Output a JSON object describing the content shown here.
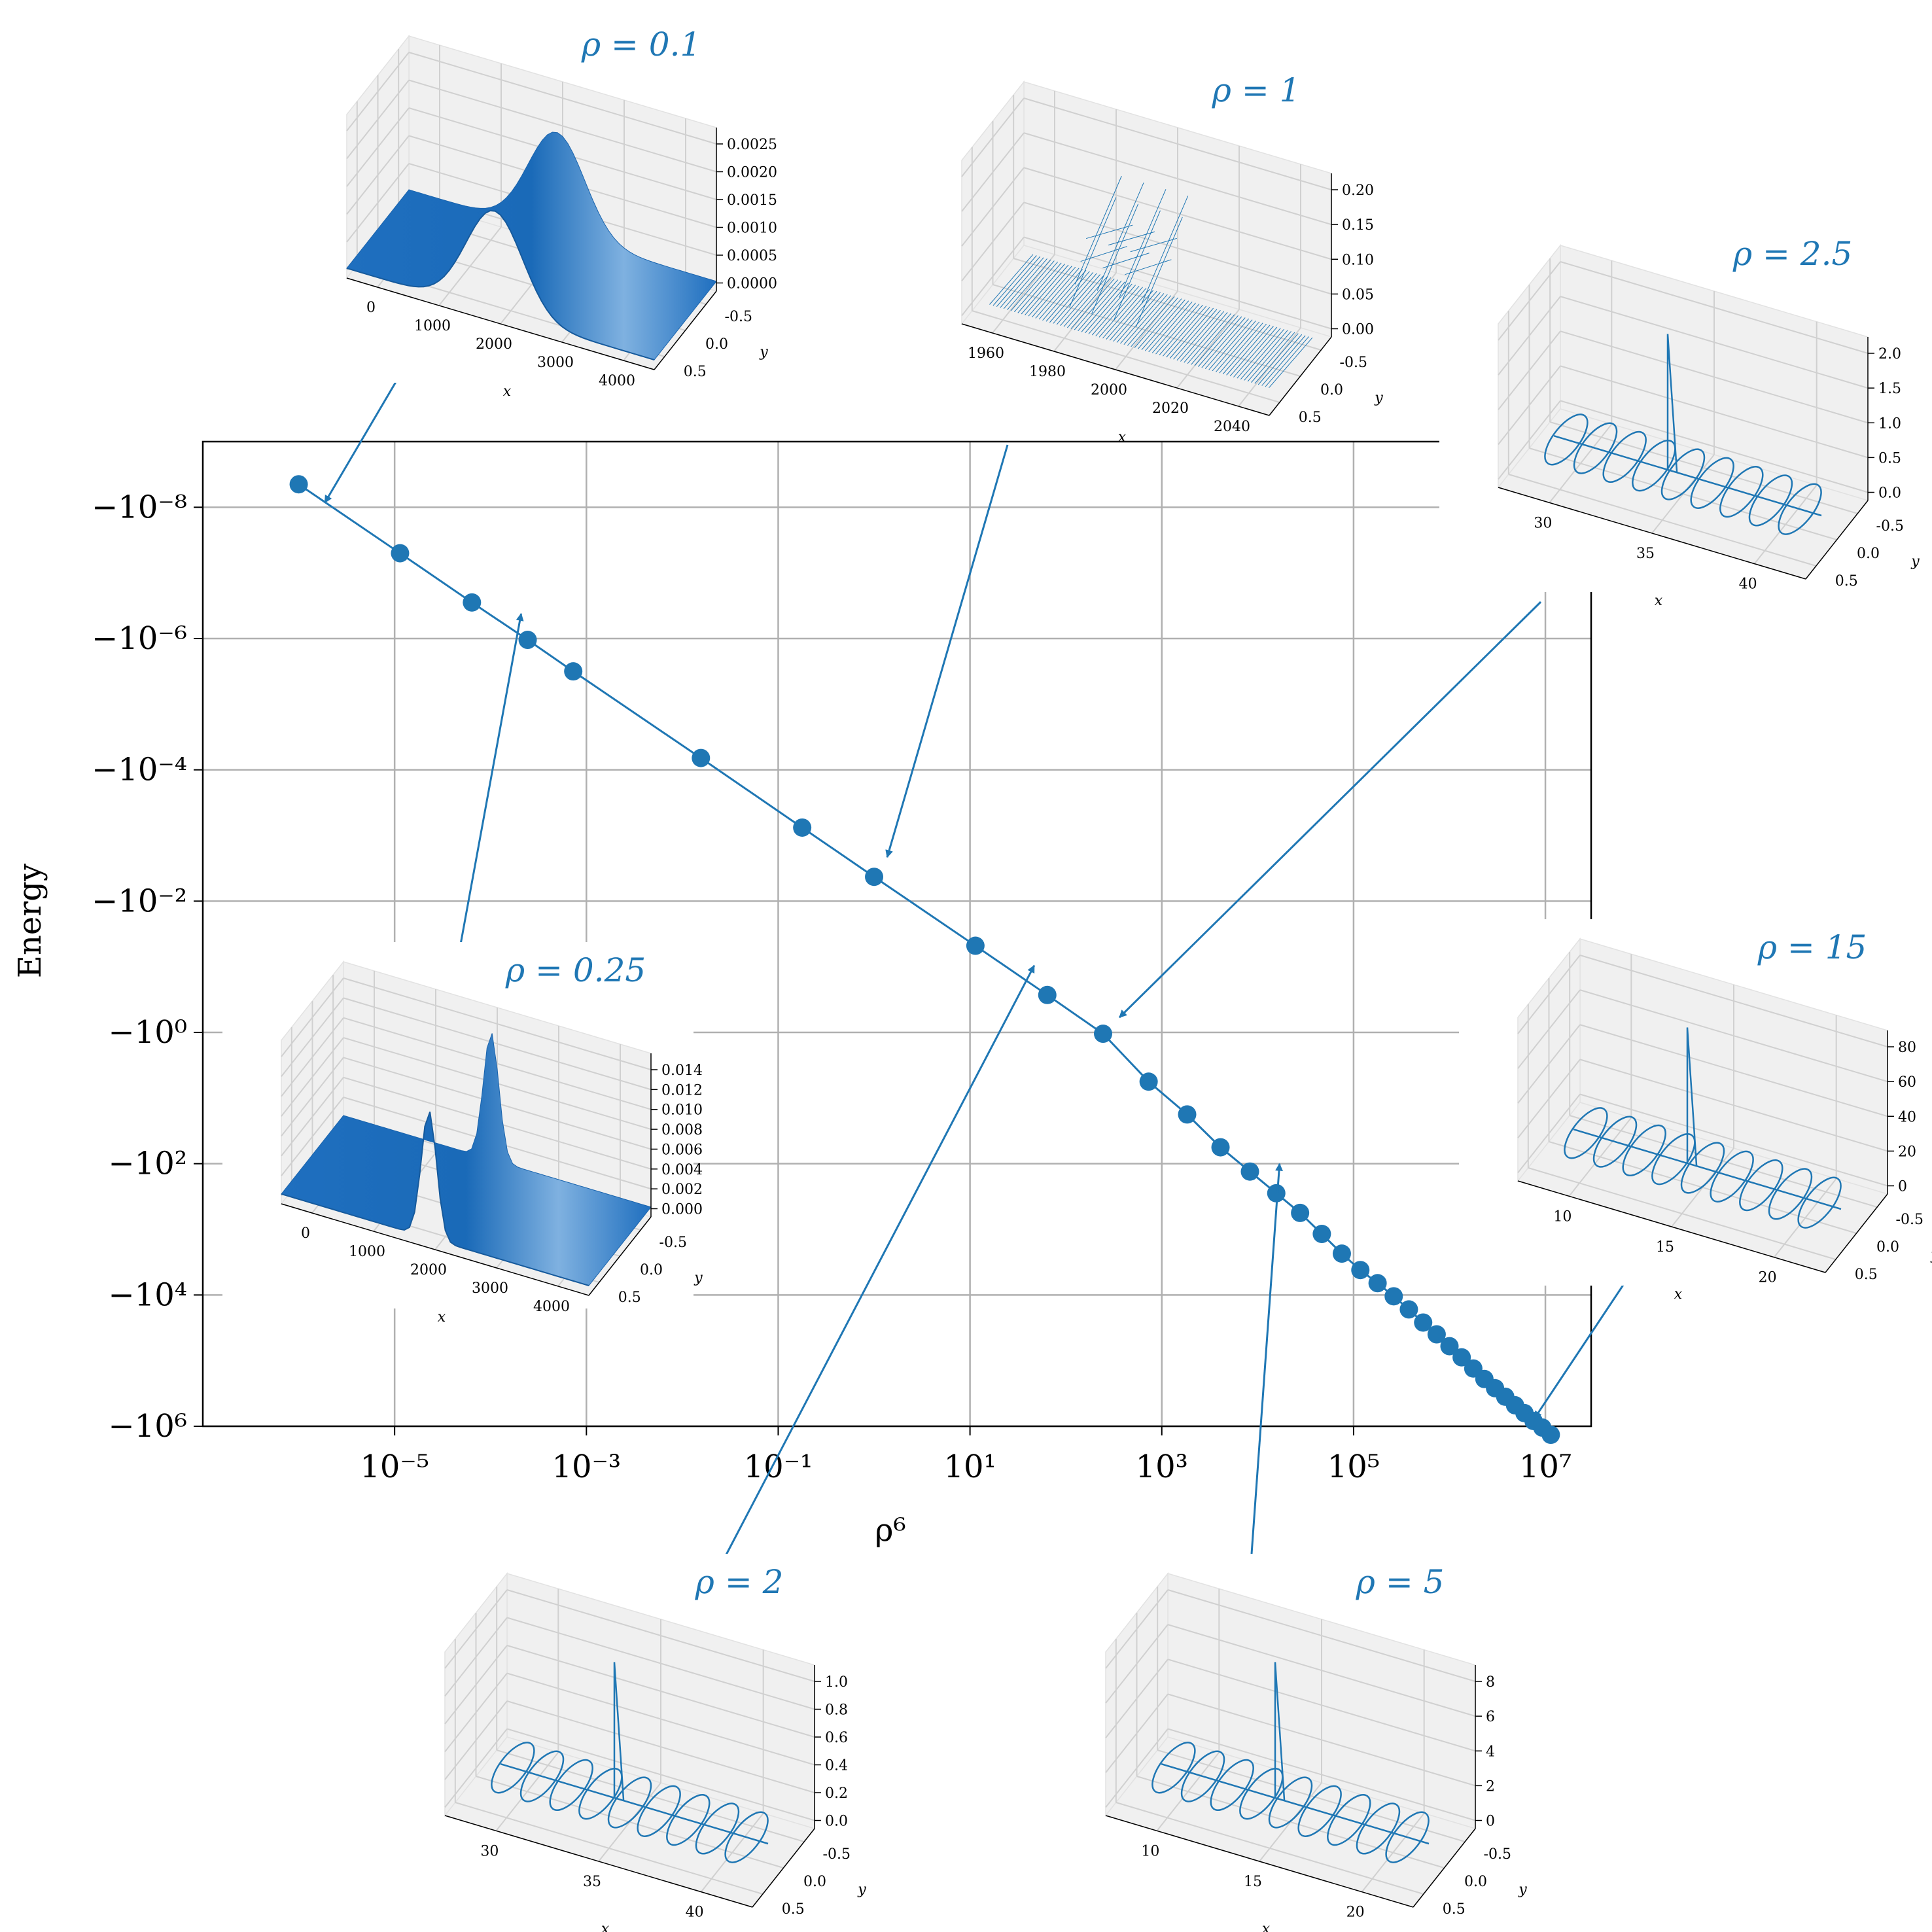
{
  "chart_data": {
    "type": "scatter",
    "xlabel": "ρ⁶",
    "ylabel": "Energy",
    "x_scale": "log",
    "y_scale": "symlog-negative",
    "xlim": [
      1e-07,
      30000000.0
    ],
    "ylim_exponent": [
      -9,
      6
    ],
    "grid": true,
    "color": "#1f77b4",
    "x_tick_labels": [
      "10⁻⁵",
      "10⁻³",
      "10⁻¹",
      "10¹",
      "10³",
      "10⁵",
      "10⁷"
    ],
    "x_tick_exponents": [
      -5,
      -3,
      -1,
      1,
      3,
      5,
      7
    ],
    "y_tick_labels": [
      "−10⁻⁸",
      "−10⁻⁶",
      "−10⁻⁴",
      "−10⁻²",
      "−10⁰",
      "−10²",
      "−10⁴",
      "−10⁶"
    ],
    "y_tick_exponents": [
      -8,
      -6,
      -4,
      -2,
      0,
      2,
      4,
      6
    ],
    "rho": [
      0.1,
      0.15,
      0.2,
      0.25,
      0.3,
      0.5,
      0.75,
      1,
      1.5,
      2,
      2.5,
      3,
      3.5,
      4,
      4.5,
      5,
      5.5,
      6,
      6.5,
      7,
      7.5,
      8,
      8.5,
      9,
      9.5,
      10,
      10.5,
      11,
      11.5,
      12,
      12.5,
      13,
      13.5,
      14,
      14.5,
      15
    ],
    "energy_log10": [
      -8.35,
      -7.3,
      -6.55,
      -5.98,
      -5.5,
      -4.18,
      -3.12,
      -2.37,
      -1.32,
      -0.57,
      0.02,
      0.75,
      1.25,
      1.75,
      2.12,
      2.45,
      2.75,
      3.07,
      3.37,
      3.62,
      3.82,
      4.02,
      4.22,
      4.42,
      4.6,
      4.78,
      4.95,
      5.12,
      5.28,
      5.42,
      5.55,
      5.68,
      5.8,
      5.92,
      6.02,
      6.13
    ],
    "insets": [
      {
        "title": "ρ = 0.1",
        "kind": "surface",
        "points_to_rho": 0.1,
        "x_ticks": [
          "0",
          "1000",
          "2000",
          "3000",
          "4000"
        ],
        "y_ticks": [
          "0.5",
          "0.0",
          "-0.5"
        ],
        "z_ticks": [
          "0.0025",
          "0.0020",
          "0.0015",
          "0.0010",
          "0.0005",
          "0.0000"
        ],
        "xlabel": "x",
        "ylabel": "y"
      },
      {
        "title": "ρ = 1",
        "kind": "wires",
        "points_to_rho": 1,
        "x_ticks": [
          "1960",
          "1980",
          "2000",
          "2020",
          "2040"
        ],
        "y_ticks": [
          "0.5",
          "0.0",
          "-0.5"
        ],
        "z_ticks": [
          "0.20",
          "0.15",
          "0.10",
          "0.05",
          "0.00"
        ],
        "xlabel": "x",
        "ylabel": "y"
      },
      {
        "title": "ρ = 2.5",
        "kind": "loops",
        "points_to_rho": 2.5,
        "x_ticks": [
          "30",
          "35",
          "40"
        ],
        "y_ticks": [
          "0.5",
          "0.0",
          "-0.5"
        ],
        "z_ticks": [
          "2.0",
          "1.5",
          "1.0",
          "0.5",
          "0.0"
        ],
        "xlabel": "x",
        "ylabel": "y"
      },
      {
        "title": "ρ = 0.25",
        "kind": "surface",
        "points_to_rho": 0.25,
        "x_ticks": [
          "0",
          "1000",
          "2000",
          "3000",
          "4000"
        ],
        "y_ticks": [
          "0.5",
          "0.0",
          "-0.5"
        ],
        "z_ticks": [
          "0.014",
          "0.012",
          "0.010",
          "0.008",
          "0.006",
          "0.004",
          "0.002",
          "0.000"
        ],
        "xlabel": "x",
        "ylabel": "y"
      },
      {
        "title": "ρ = 15",
        "kind": "loops",
        "points_to_rho": 15,
        "x_ticks": [
          "10",
          "15",
          "20"
        ],
        "y_ticks": [
          "0.5",
          "0.0",
          "-0.5"
        ],
        "z_ticks": [
          "80",
          "60",
          "40",
          "20",
          "0"
        ],
        "xlabel": "x",
        "ylabel": "y"
      },
      {
        "title": "ρ = 2",
        "kind": "loops",
        "points_to_rho": 2,
        "x_ticks": [
          "30",
          "35",
          "40"
        ],
        "y_ticks": [
          "0.5",
          "0.0",
          "-0.5"
        ],
        "z_ticks": [
          "1.0",
          "0.8",
          "0.6",
          "0.4",
          "0.2",
          "0.0"
        ],
        "xlabel": "x",
        "ylabel": "y"
      },
      {
        "title": "ρ = 5",
        "kind": "loops",
        "points_to_rho": 5,
        "x_ticks": [
          "10",
          "15",
          "20"
        ],
        "y_ticks": [
          "0.5",
          "0.0",
          "-0.5"
        ],
        "z_ticks": [
          "8",
          "6",
          "4",
          "2",
          "0"
        ],
        "xlabel": "x",
        "ylabel": "y"
      }
    ]
  }
}
